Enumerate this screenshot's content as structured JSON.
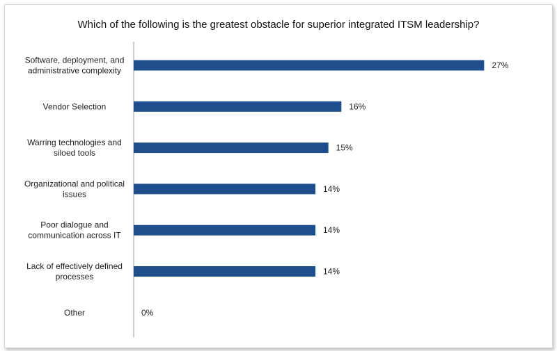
{
  "chart_data": {
    "type": "bar",
    "orientation": "horizontal",
    "title": "Which of the following is the greatest obstacle for superior integrated ITSM leadership?",
    "xlabel": "",
    "ylabel": "",
    "categories": [
      [
        "Software, deployment, and",
        "administrative complexity"
      ],
      [
        "Vendor Selection"
      ],
      [
        "Warring technologies and",
        "siloed tools"
      ],
      [
        "Organizational and political",
        "issues"
      ],
      [
        "Poor dialogue and",
        "communication across IT"
      ],
      [
        "Lack of effectively defined",
        "processes"
      ],
      [
        "Other"
      ]
    ],
    "values": [
      27,
      16,
      15,
      14,
      14,
      14,
      0
    ],
    "value_labels": [
      "27%",
      "16%",
      "15%",
      "14%",
      "14%",
      "14%",
      "0%"
    ],
    "unit": "%",
    "xlim": [
      0,
      28
    ],
    "grid": false,
    "legend": "none",
    "bar_color": "#1f4e8c"
  }
}
